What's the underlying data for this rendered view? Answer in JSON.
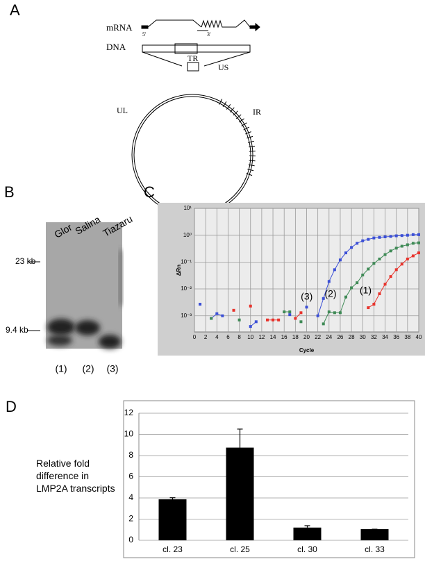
{
  "panel_labels": [
    "A",
    "B",
    "C",
    "D"
  ],
  "diagram": {
    "labels": {
      "mrna": "mRNA",
      "five_prime": "5'",
      "three_prime": "3'",
      "dna": "DNA",
      "tr": "TR",
      "us": "US",
      "ir": "IR",
      "ul": "UL"
    }
  },
  "gel": {
    "lanes": [
      "Glor",
      "Salina",
      "Tiazaru"
    ],
    "markers": [
      "23 kb",
      "9.4 kb"
    ],
    "lane_numbers": [
      "(1)",
      "(2)",
      "(3)"
    ]
  },
  "chart_data": [
    {
      "type": "line",
      "x_label": "Cycle",
      "y_label": "ΔRn",
      "yscale": "log",
      "grid": true,
      "x": [
        1,
        2,
        3,
        4,
        5,
        6,
        7,
        8,
        9,
        10,
        11,
        12,
        13,
        14,
        15,
        16,
        17,
        18,
        19,
        20,
        21,
        22,
        23,
        24,
        25,
        26,
        27,
        28,
        29,
        30,
        31,
        32,
        33,
        34,
        35,
        36,
        37,
        38,
        39,
        40
      ],
      "xlim": [
        0,
        40
      ],
      "xticks": [
        0,
        2,
        4,
        6,
        8,
        10,
        12,
        14,
        16,
        18,
        20,
        22,
        24,
        26,
        28,
        30,
        32,
        34,
        36,
        38,
        40
      ],
      "ylim": [
        0.00025,
        10
      ],
      "yticks": [
        {
          "value": 10,
          "label": "10¹"
        },
        {
          "value": 1,
          "label": "10⁰"
        },
        {
          "value": 0.1,
          "label": "10⁻¹"
        },
        {
          "value": 0.01,
          "label": "10⁻²"
        },
        {
          "value": 0.001,
          "label": "10⁻³"
        }
      ],
      "series": [
        {
          "name": "(3)",
          "color": "#3b4fd6",
          "values": [
            0.0027,
            null,
            0.0008,
            0.0012,
            0.001,
            null,
            null,
            null,
            null,
            0.0004,
            0.0006,
            null,
            null,
            null,
            null,
            null,
            0.0011,
            null,
            null,
            0.0021,
            null,
            0.001,
            0.0044,
            0.019,
            0.052,
            0.12,
            0.22,
            0.35,
            0.5,
            0.62,
            0.7,
            0.79,
            0.83,
            0.87,
            0.9,
            0.95,
            0.97,
            1.0,
            1.05,
            1.05
          ]
        },
        {
          "name": "(2)",
          "color": "#3f8a56",
          "values": [
            null,
            null,
            0.0008,
            null,
            null,
            null,
            null,
            0.0007,
            null,
            null,
            null,
            null,
            null,
            null,
            null,
            0.0014,
            0.0014,
            null,
            0.0006,
            null,
            null,
            null,
            0.0005,
            0.0014,
            0.0013,
            0.0013,
            0.005,
            0.011,
            0.017,
            0.033,
            0.055,
            0.089,
            0.13,
            0.19,
            0.26,
            0.33,
            0.39,
            0.44,
            0.5,
            0.52
          ]
        },
        {
          "name": "(1)",
          "color": "#e8332c",
          "values": [
            null,
            null,
            null,
            null,
            null,
            null,
            0.0016,
            null,
            null,
            0.0023,
            null,
            null,
            0.0007,
            0.0007,
            0.0007,
            null,
            null,
            0.0008,
            0.0013,
            null,
            null,
            null,
            null,
            null,
            null,
            null,
            null,
            null,
            null,
            null,
            0.002,
            0.0027,
            0.0066,
            0.015,
            0.029,
            0.052,
            0.084,
            0.13,
            0.17,
            0.22
          ]
        }
      ]
    },
    {
      "type": "bar",
      "y_label": "Relative fold difference in LMP2A transcripts",
      "categories": [
        "cl. 23",
        "cl. 25",
        "cl. 30",
        "cl. 33"
      ],
      "values": [
        3.87,
        8.75,
        1.2,
        1.05
      ],
      "errors": [
        0.15,
        1.75,
        0.18,
        0
      ],
      "color": "#000000",
      "ylim": [
        0,
        12
      ],
      "yticks": [
        0,
        2,
        4,
        6,
        8,
        10,
        12
      ],
      "grid": true
    }
  ]
}
